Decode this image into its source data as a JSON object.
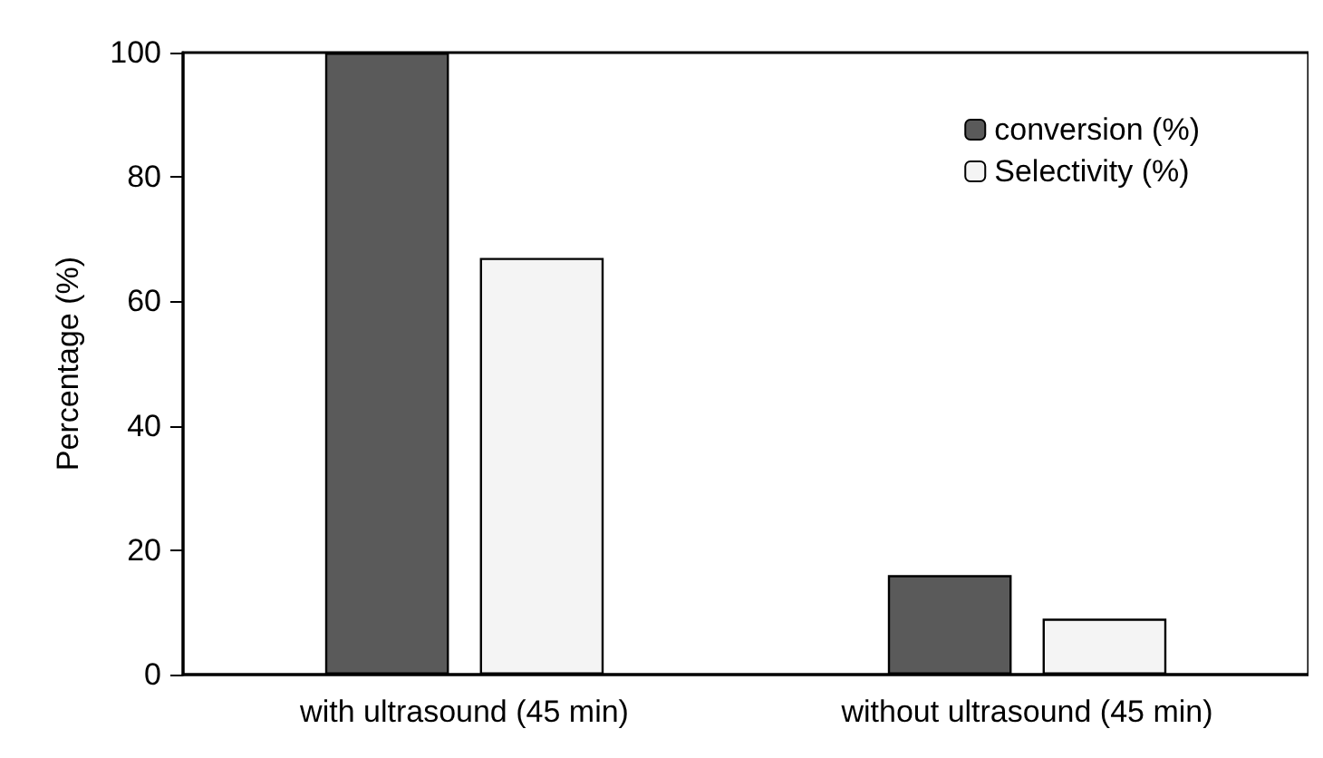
{
  "chart_data": {
    "type": "bar",
    "ylabel": "Percentage (%)",
    "categories": [
      "with ultrasound (45 min)",
      "without ultrasound (45 min)"
    ],
    "series": [
      {
        "name": "conversion (%)",
        "color": "#5a5a5a",
        "values": [
          100,
          16
        ]
      },
      {
        "name": "Selectivity (%)",
        "color": "#f4f4f4",
        "values": [
          67,
          9
        ]
      }
    ],
    "ylim": [
      0,
      100
    ],
    "yticks": [
      0,
      20,
      40,
      60,
      80,
      100
    ],
    "grid": false,
    "legend": "top right"
  }
}
